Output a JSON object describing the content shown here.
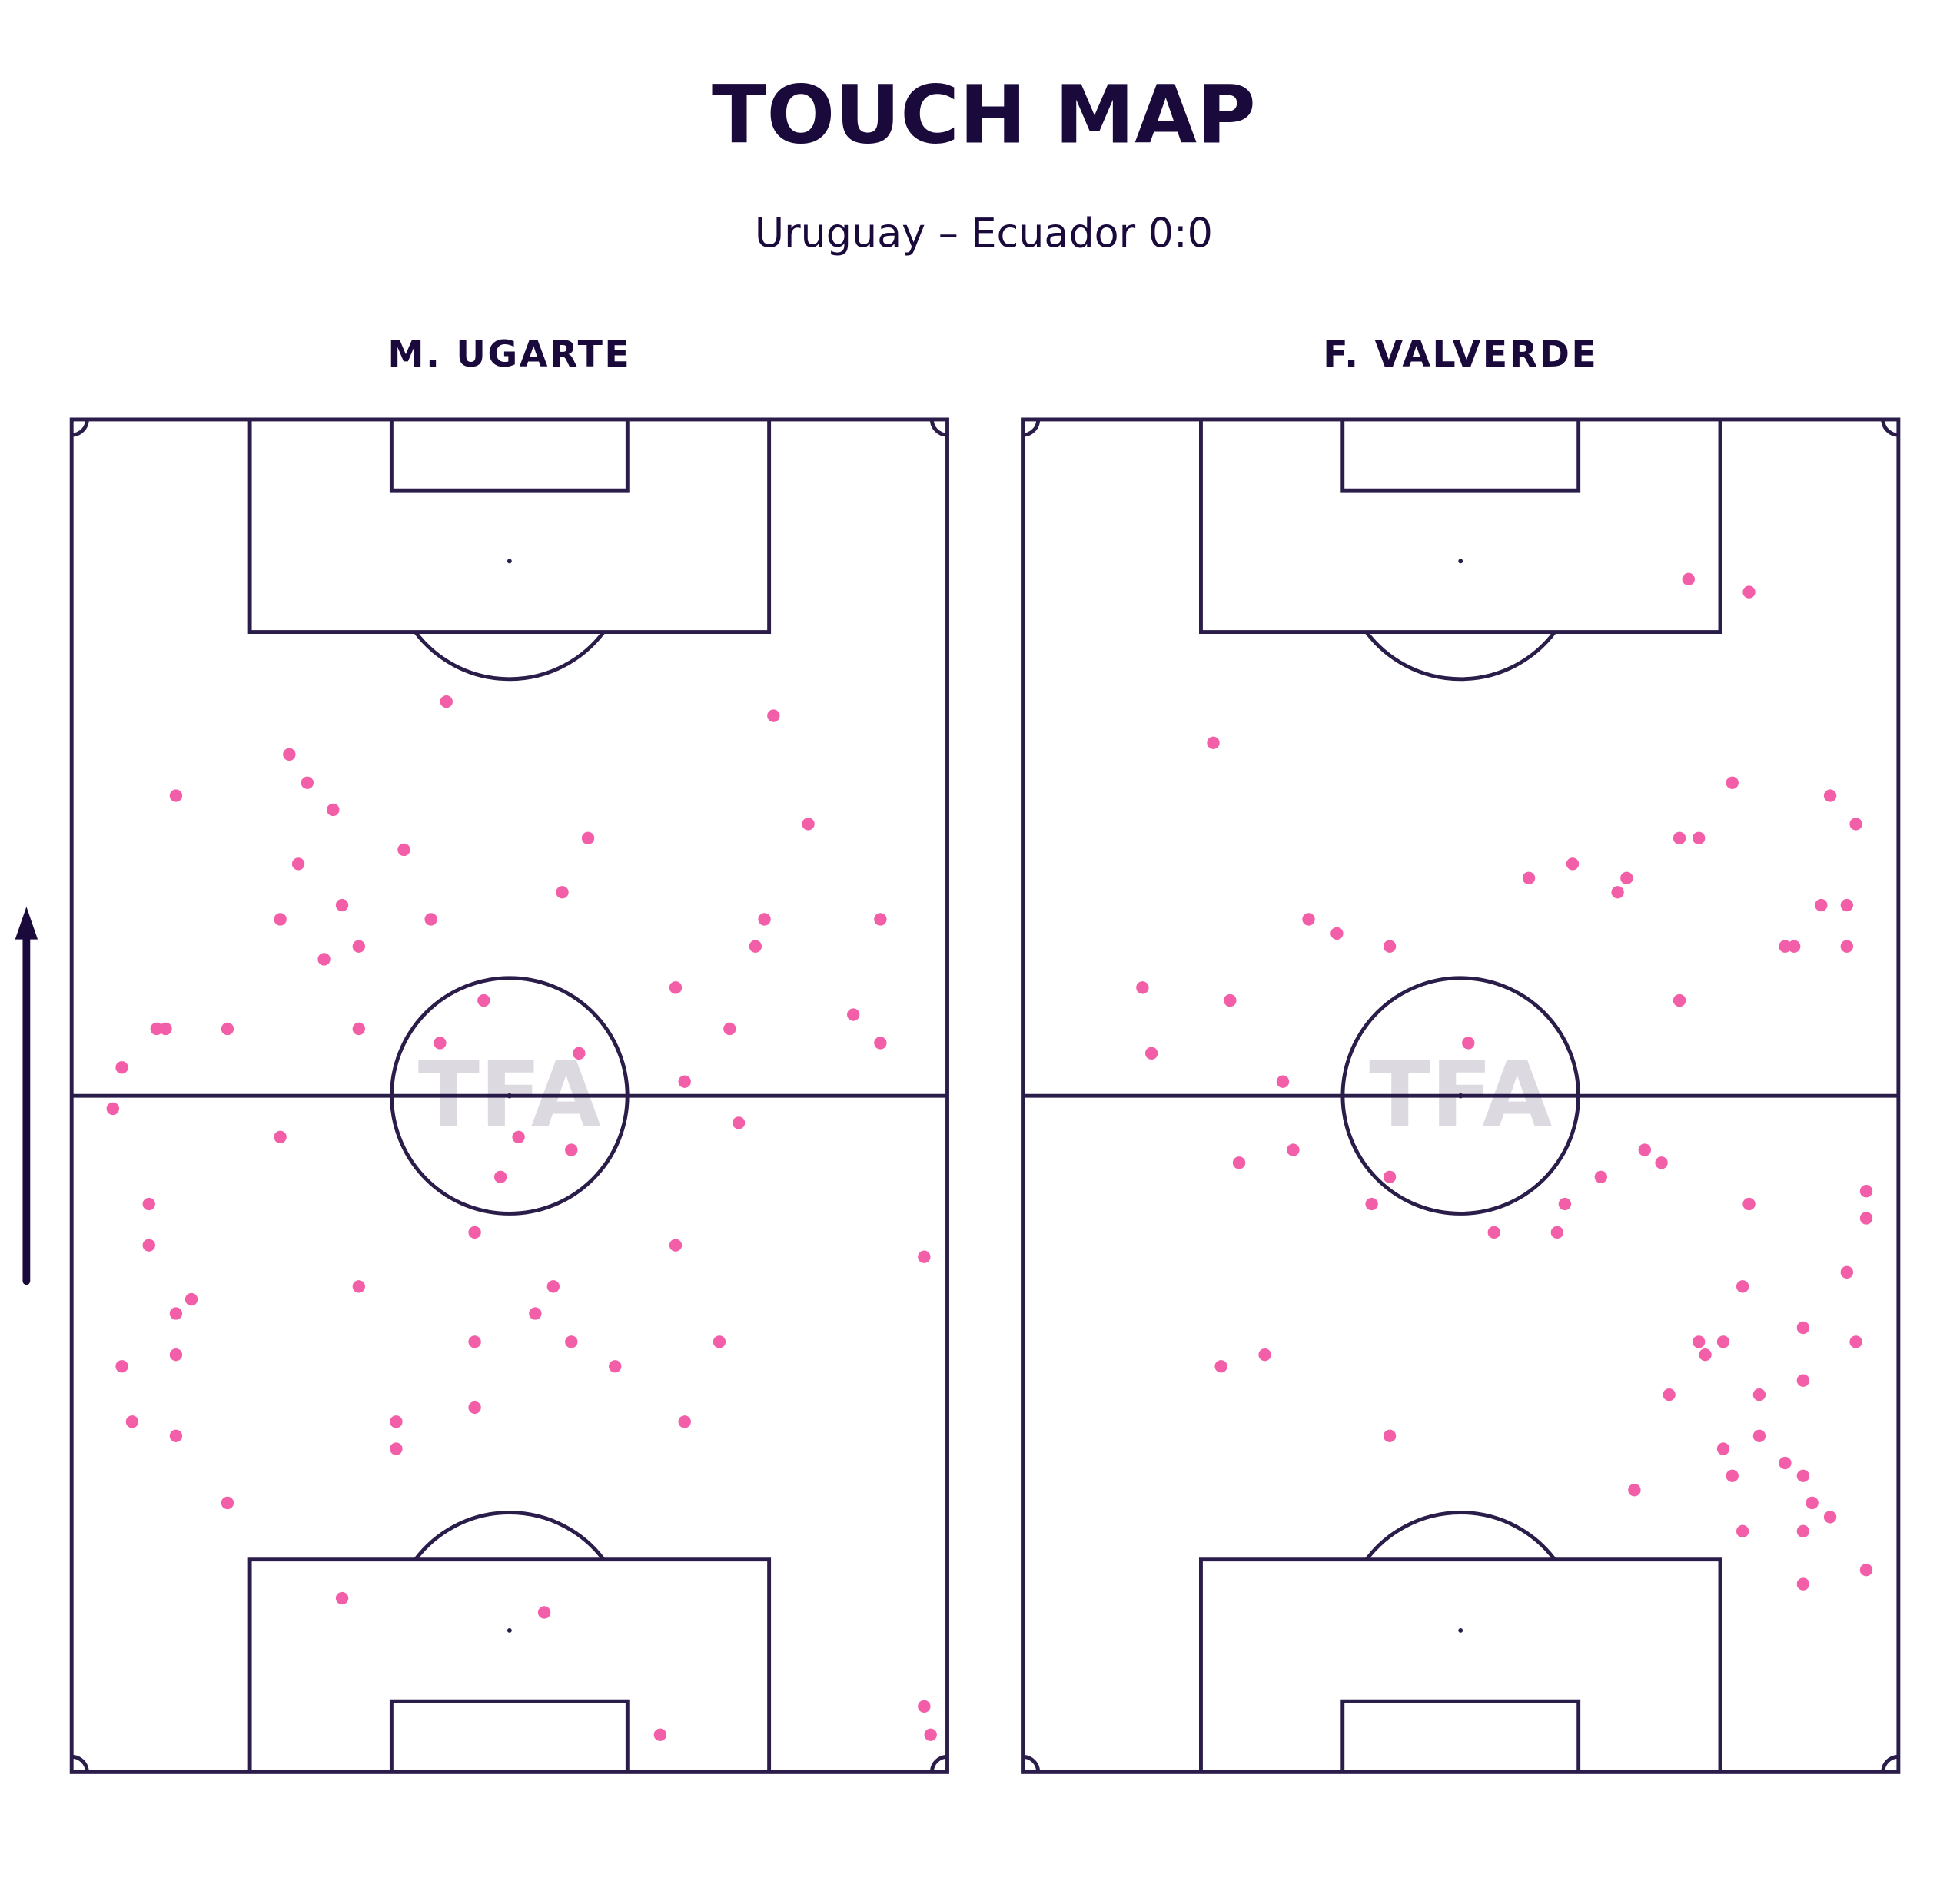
{
  "title": "TOUCH MAP",
  "subtitle": "Uruguay – Ecuador 0:0",
  "watermark": "TFA",
  "chart_data": [
    {
      "type": "scatter",
      "title": "M. UGARTE",
      "color": "#f25fa8",
      "xlim": [
        0,
        68
      ],
      "ylim": [
        0,
        105
      ],
      "x": [
        29.1,
        54.5,
        16.9,
        18.3,
        8.1,
        20.3,
        57.2,
        40.1,
        25.8,
        17.6,
        38.1,
        21.0,
        16.2,
        27.9,
        53.8,
        62.8,
        22.3,
        53.1,
        19.6,
        46.9,
        32.0,
        60.7,
        6.6,
        7.3,
        12.1,
        22.3,
        51.1,
        28.6,
        62.8,
        39.4,
        3.9,
        47.6,
        3.2,
        51.8,
        16.2,
        34.7,
        38.8,
        33.3,
        6.0,
        6.0,
        31.3,
        46.9,
        66.2,
        22.3,
        37.4,
        9.3,
        8.1,
        36.0,
        31.3,
        38.8,
        50.3,
        8.1,
        3.9,
        42.2,
        31.3,
        4.7,
        25.2,
        47.6,
        8.1,
        25.2,
        12.1,
        21.0,
        36.7,
        45.7,
        66.2,
        66.7
      ],
      "y": [
        83.1,
        82.0,
        79.0,
        76.8,
        75.8,
        74.7,
        73.6,
        72.5,
        71.6,
        70.5,
        68.3,
        67.3,
        66.2,
        66.2,
        66.2,
        66.2,
        64.1,
        64.1,
        63.1,
        60.9,
        59.9,
        58.8,
        57.7,
        57.7,
        57.7,
        57.7,
        57.7,
        56.6,
        56.6,
        55.8,
        54.7,
        53.6,
        51.5,
        50.4,
        49.3,
        49.3,
        48.3,
        46.2,
        44.1,
        40.9,
        41.9,
        40.9,
        40.0,
        37.7,
        37.7,
        36.7,
        35.6,
        35.6,
        33.4,
        33.4,
        33.4,
        32.4,
        31.5,
        31.5,
        28.3,
        27.2,
        27.2,
        27.2,
        26.1,
        25.1,
        20.9,
        13.5,
        12.4,
        2.9,
        5.1,
        2.9
      ]
    },
    {
      "type": "scatter",
      "title": "F. VALVERDE",
      "color": "#f25fa8",
      "xlim": [
        0,
        68
      ],
      "ylim": [
        0,
        105
      ],
      "x": [
        51.7,
        56.4,
        14.8,
        55.1,
        62.7,
        64.7,
        51.0,
        52.5,
        42.7,
        39.3,
        46.9,
        46.2,
        62.0,
        64.0,
        22.2,
        24.4,
        28.5,
        59.2,
        59.9,
        64.0,
        9.3,
        16.1,
        51.0,
        34.6,
        10.0,
        20.2,
        21.0,
        16.8,
        48.3,
        49.6,
        44.9,
        28.5,
        65.5,
        27.1,
        42.1,
        56.4,
        65.5,
        36.6,
        41.5,
        64.0,
        55.9,
        60.6,
        52.5,
        54.4,
        64.7,
        53.0,
        18.8,
        15.4,
        60.6,
        50.2,
        57.2,
        28.5,
        57.2,
        54.4,
        59.2,
        55.1,
        60.6,
        47.5,
        61.3,
        62.7,
        55.9,
        60.6,
        65.5,
        60.6
      ],
      "y": [
        92.6,
        91.6,
        79.9,
        76.8,
        75.8,
        73.6,
        72.5,
        72.5,
        70.5,
        69.4,
        69.4,
        68.3,
        67.3,
        67.3,
        66.2,
        65.1,
        64.1,
        64.1,
        64.1,
        64.1,
        60.9,
        59.9,
        59.9,
        56.6,
        55.8,
        53.6,
        48.3,
        47.3,
        48.3,
        47.3,
        46.2,
        46.2,
        45.1,
        44.1,
        44.1,
        44.1,
        43.0,
        41.9,
        41.9,
        38.8,
        37.7,
        34.5,
        33.4,
        33.4,
        33.4,
        32.4,
        32.4,
        31.5,
        30.4,
        29.3,
        29.3,
        26.1,
        26.1,
        25.1,
        24.0,
        23.0,
        23.0,
        21.9,
        20.9,
        19.8,
        18.7,
        18.7,
        15.7,
        14.6
      ]
    }
  ]
}
